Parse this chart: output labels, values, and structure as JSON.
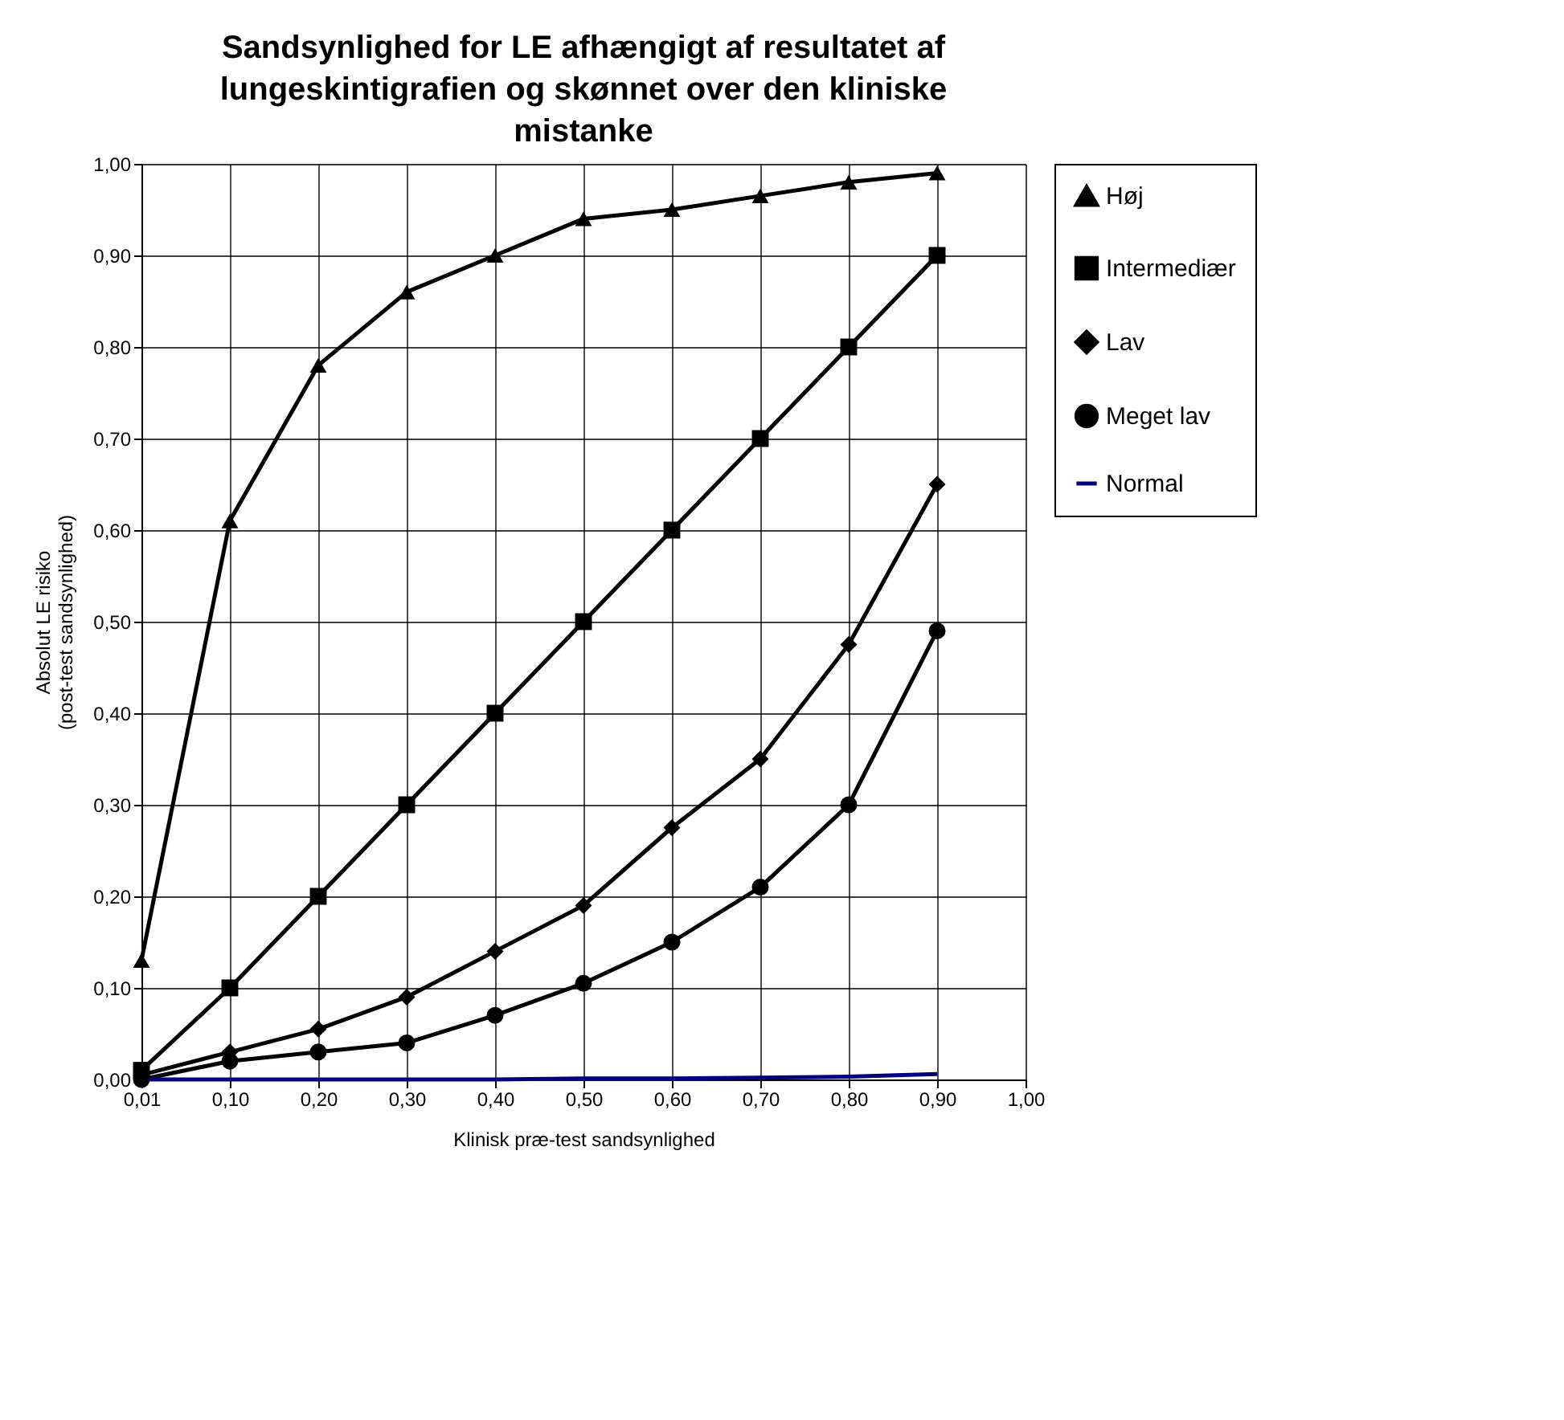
{
  "chart_data": {
    "type": "line",
    "title": "Sandsynlighed for LE afhængigt af resultatet af lungeskintigrafien og skønnet over den kliniske mistanke",
    "xlabel": "Klinisk præ-test sandsynlighed",
    "ylabel": "Absolut LE risiko\n(post-test sandsynlighed)",
    "categories": [
      "0,01",
      "0,10",
      "0,20",
      "0,30",
      "0,40",
      "0,50",
      "0,60",
      "0,70",
      "0,80",
      "0,90",
      "1,00"
    ],
    "series": [
      {
        "name": "Høj",
        "color": "#000000",
        "marker": "triangle",
        "values": [
          0.13,
          0.61,
          0.78,
          0.86,
          0.9,
          0.94,
          0.95,
          0.965,
          0.98,
          0.99,
          null
        ]
      },
      {
        "name": "Intermediær",
        "color": "#000000",
        "marker": "square",
        "values": [
          0.01,
          0.1,
          0.2,
          0.3,
          0.4,
          0.5,
          0.6,
          0.7,
          0.8,
          0.9,
          null
        ]
      },
      {
        "name": "Lav",
        "color": "#000000",
        "marker": "diamond",
        "values": [
          0.005,
          0.03,
          0.055,
          0.09,
          0.14,
          0.19,
          0.275,
          0.35,
          0.475,
          0.65,
          null
        ]
      },
      {
        "name": "Meget lav",
        "color": "#000000",
        "marker": "circle",
        "values": [
          0,
          0.02,
          0.03,
          0.04,
          0.07,
          0.105,
          0.15,
          0.21,
          0.3,
          0.49,
          null
        ]
      },
      {
        "name": "Normal",
        "color": "#000080",
        "marker": "none",
        "values": [
          0,
          0,
          0,
          0,
          0,
          0.001,
          0.001,
          0.002,
          0.003,
          0.006,
          null
        ]
      }
    ],
    "ylim": [
      0,
      1
    ],
    "yticks": [
      {
        "value": 0,
        "label": "0,00"
      },
      {
        "value": 0.1,
        "label": "0,10"
      },
      {
        "value": 0.2,
        "label": "0,20"
      },
      {
        "value": 0.3,
        "label": "0,30"
      },
      {
        "value": 0.4,
        "label": "0,40"
      },
      {
        "value": 0.5,
        "label": "0,50"
      },
      {
        "value": 0.6,
        "label": "0,60"
      },
      {
        "value": 0.7,
        "label": "0,70"
      },
      {
        "value": 0.8,
        "label": "0,80"
      },
      {
        "value": 0.9,
        "label": "0,90"
      },
      {
        "value": 1,
        "label": "1,00"
      }
    ],
    "grid": true,
    "legend": "right"
  }
}
